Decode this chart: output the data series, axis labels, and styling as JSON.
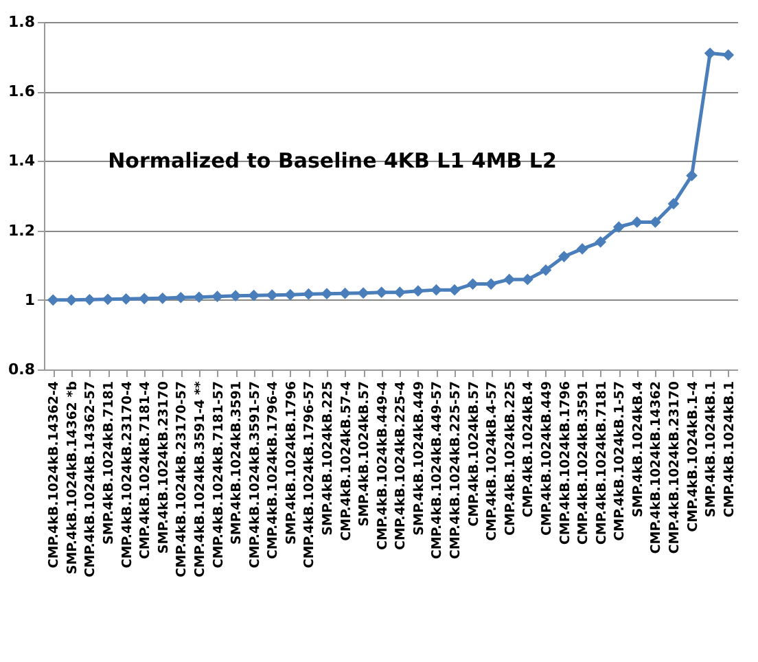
{
  "chart_data": {
    "type": "line",
    "title": "Normalized to Baseline 4KB L1 4MB L2",
    "categories": [
      "CMP.4kB.1024kB.14362-4",
      "SMP.4kB.1024kB.14362 *b",
      "CMP.4kB.1024kB.14362-57",
      "SMP.4kB.1024kB.7181",
      "CMP.4kB.1024kB.23170-4",
      "CMP.4kB.1024kB.7181-4",
      "SMP.4kB.1024kB.23170",
      "CMP.4kB.1024kB.23170-57",
      "CMP.4kB.1024kB.3591-4 **",
      "CMP.4kB.1024kB.7181-57",
      "SMP.4kB.1024kB.3591",
      "CMP.4kB.1024kB.3591-57",
      "CMP.4kB.1024kB.1796-4",
      "SMP.4kB.1024kB.1796",
      "CMP.4kB.1024kB.1796-57",
      "SMP.4kB.1024kB.225",
      "CMP.4kB.1024kB.57-4",
      "SMP.4kB.1024kB.57",
      "CMP.4kB.1024kB.449-4",
      "CMP.4kB.1024kB.225-4",
      "SMP.4kB.1024kB.449",
      "CMP.4kB.1024kB.449-57",
      "CMP.4kB.1024kB.225-57",
      "CMP.4kB.1024kB.57",
      "CMP.4kB.1024kB.4-57",
      "CMP.4kB.1024kB.225",
      "CMP.4kB.1024kB.4",
      "CMP.4kB.1024kB.449",
      "CMP.4kB.1024kB.1796",
      "CMP.4kB.1024kB.3591",
      "CMP.4kB.1024kB.7181",
      "CMP.4kB.1024kB.1-57",
      "SMP.4kB.1024kB.4",
      "CMP.4kB.1024kB.14362",
      "CMP.4kB.1024kB.23170",
      "CMP.4kB.1024kB.1-4",
      "SMP.4kB.1024kB.1",
      "CMP.4kB.1024kB.1"
    ],
    "series": [
      {
        "color": "#4a7ebb",
        "values": [
          1.0,
          1.0,
          1.001,
          1.002,
          1.003,
          1.004,
          1.005,
          1.007,
          1.008,
          1.01,
          1.012,
          1.013,
          1.014,
          1.015,
          1.017,
          1.018,
          1.019,
          1.02,
          1.022,
          1.022,
          1.026,
          1.029,
          1.029,
          1.046,
          1.046,
          1.059,
          1.059,
          1.086,
          1.125,
          1.147,
          1.167,
          1.21,
          1.224,
          1.224,
          1.277,
          1.358,
          1.71,
          1.705
        ]
      }
    ],
    "ylim": [
      0.8,
      1.8
    ],
    "yticks": [
      0.8,
      1,
      1.2,
      1.4,
      1.6,
      1.8
    ],
    "grid": "y",
    "legend": false,
    "marker": "diamond",
    "line_style": "solid"
  }
}
